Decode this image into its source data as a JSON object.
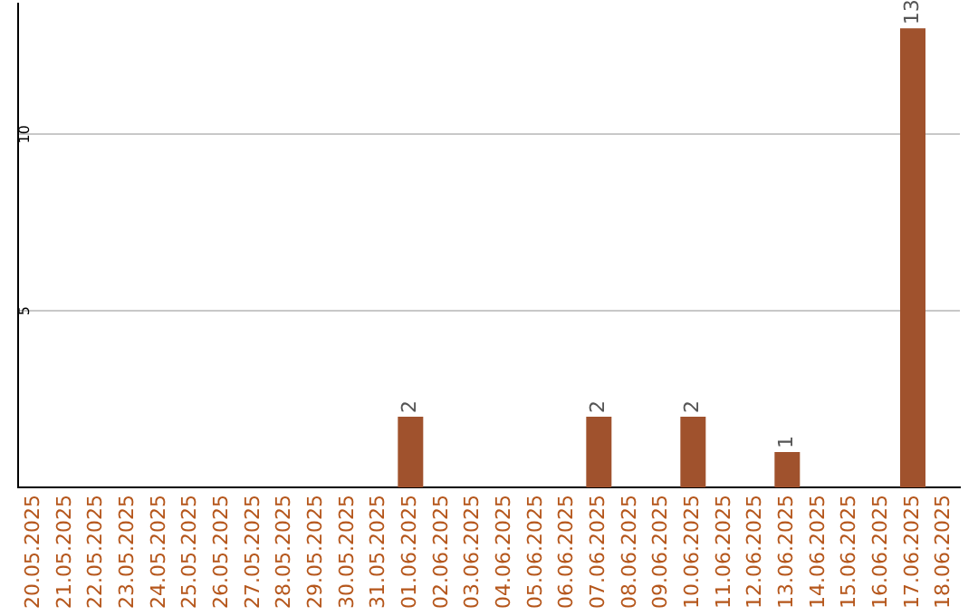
{
  "chart_data": {
    "type": "bar",
    "categories": [
      "20.05.2025",
      "21.05.2025",
      "22.05.2025",
      "23.05.2025",
      "24.05.2025",
      "25.05.2025",
      "26.05.2025",
      "27.05.2025",
      "28.05.2025",
      "29.05.2025",
      "30.05.2025",
      "31.05.2025",
      "01.06.2025",
      "02.06.2025",
      "03.06.2025",
      "04.06.2025",
      "05.06.2025",
      "06.06.2025",
      "07.06.2025",
      "08.06.2025",
      "09.06.2025",
      "10.06.2025",
      "11.06.2025",
      "12.06.2025",
      "13.06.2025",
      "14.06.2025",
      "15.06.2025",
      "16.06.2025",
      "17.06.2025",
      "18.06.2025"
    ],
    "values": [
      0,
      0,
      0,
      0,
      0,
      0,
      0,
      0,
      0,
      0,
      0,
      0,
      2,
      0,
      0,
      0,
      0,
      0,
      2,
      0,
      0,
      2,
      0,
      0,
      1,
      0,
      0,
      0,
      13,
      0
    ],
    "value_labels": [
      null,
      null,
      null,
      null,
      null,
      null,
      null,
      null,
      null,
      null,
      null,
      null,
      "2",
      null,
      null,
      null,
      null,
      null,
      "2",
      null,
      null,
      "2",
      null,
      null,
      "1",
      null,
      null,
      null,
      "13",
      null
    ],
    "color": "#a0522d",
    "ylim": [
      0,
      13.7
    ],
    "yticks": [
      5,
      10
    ],
    "grid": "y",
    "legend": false
  }
}
